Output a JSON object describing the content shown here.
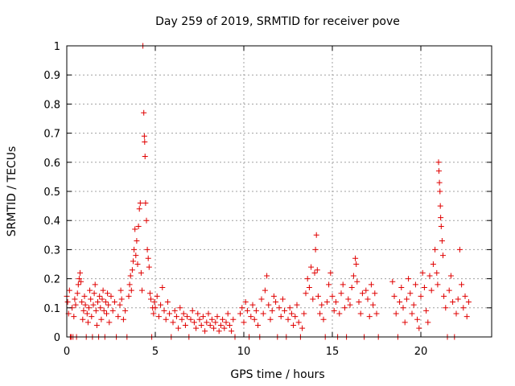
{
  "chart_data": {
    "type": "scatter",
    "title": "Day 259 of 2019, SRMTID for receiver pove",
    "xlabel": "GPS time / hours",
    "ylabel": "SRMTID / TECUs",
    "xlim": [
      0,
      24
    ],
    "ylim": [
      0,
      1
    ],
    "xticks": [
      0,
      5,
      10,
      15,
      20
    ],
    "yticks": [
      0,
      0.1,
      0.2,
      0.3,
      0.4,
      0.5,
      0.6,
      0.7,
      0.8,
      0.9,
      1
    ],
    "marker": "+",
    "color": "#e00000",
    "grid": true,
    "series": [
      {
        "name": "SRMTID",
        "points": [
          [
            0.0,
            0.14
          ],
          [
            0.05,
            0.12
          ],
          [
            0.1,
            0.08
          ],
          [
            0.15,
            0.16
          ],
          [
            0.2,
            0.0
          ],
          [
            0.25,
            0.0
          ],
          [
            0.3,
            0.1
          ],
          [
            0.35,
            0.0
          ],
          [
            0.4,
            0.07
          ],
          [
            0.45,
            0.13
          ],
          [
            0.5,
            0.11
          ],
          [
            0.55,
            0.0
          ],
          [
            0.6,
            0.15
          ],
          [
            0.65,
            0.18
          ],
          [
            0.7,
            0.2
          ],
          [
            0.75,
            0.22
          ],
          [
            0.8,
            0.19
          ],
          [
            0.85,
            0.12
          ],
          [
            0.9,
            0.06
          ],
          [
            0.95,
            0.09
          ],
          [
            1.0,
            0.14
          ],
          [
            1.05,
            0.11
          ],
          [
            1.1,
            0.0
          ],
          [
            1.15,
            0.08
          ],
          [
            1.2,
            0.05
          ],
          [
            1.25,
            0.1
          ],
          [
            1.3,
            0.16
          ],
          [
            1.35,
            0.13
          ],
          [
            1.4,
            0.07
          ],
          [
            1.45,
            0.0
          ],
          [
            1.5,
            0.11
          ],
          [
            1.55,
            0.15
          ],
          [
            1.6,
            0.18
          ],
          [
            1.65,
            0.09
          ],
          [
            1.7,
            0.04
          ],
          [
            1.75,
            0.12
          ],
          [
            1.8,
            0.0
          ],
          [
            1.85,
            0.14
          ],
          [
            1.9,
            0.1
          ],
          [
            1.95,
            0.06
          ],
          [
            2.0,
            0.13
          ],
          [
            2.05,
            0.16
          ],
          [
            2.1,
            0.09
          ],
          [
            2.15,
            0.0
          ],
          [
            2.2,
            0.12
          ],
          [
            2.25,
            0.08
          ],
          [
            2.3,
            0.15
          ],
          [
            2.35,
            0.11
          ],
          [
            2.4,
            0.05
          ],
          [
            2.5,
            0.14
          ],
          [
            2.6,
            0.09
          ],
          [
            2.7,
            0.12
          ],
          [
            2.8,
            0.0
          ],
          [
            2.9,
            0.07
          ],
          [
            3.0,
            0.11
          ],
          [
            3.05,
            0.16
          ],
          [
            3.1,
            0.13
          ],
          [
            3.2,
            0.06
          ],
          [
            3.3,
            0.09
          ],
          [
            3.4,
            0.0
          ],
          [
            3.5,
            0.14
          ],
          [
            3.55,
            0.18
          ],
          [
            3.6,
            0.21
          ],
          [
            3.65,
            0.16
          ],
          [
            3.7,
            0.23
          ],
          [
            3.75,
            0.26
          ],
          [
            3.8,
            0.3
          ],
          [
            3.85,
            0.37
          ],
          [
            3.9,
            0.28
          ],
          [
            3.95,
            0.33
          ],
          [
            4.0,
            0.25
          ],
          [
            4.05,
            0.38
          ],
          [
            4.1,
            0.44
          ],
          [
            4.15,
            0.46
          ],
          [
            4.2,
            0.22
          ],
          [
            4.25,
            0.16
          ],
          [
            4.3,
            1.0
          ],
          [
            4.35,
            0.77
          ],
          [
            4.38,
            0.69
          ],
          [
            4.4,
            0.67
          ],
          [
            4.42,
            0.62
          ],
          [
            4.45,
            0.46
          ],
          [
            4.5,
            0.4
          ],
          [
            4.55,
            0.3
          ],
          [
            4.6,
            0.27
          ],
          [
            4.65,
            0.24
          ],
          [
            4.7,
            0.15
          ],
          [
            4.75,
            0.13
          ],
          [
            4.8,
            0.0
          ],
          [
            4.85,
            0.1
          ],
          [
            4.9,
            0.08
          ],
          [
            4.95,
            0.12
          ],
          [
            5.0,
            0.1
          ],
          [
            5.1,
            0.14
          ],
          [
            5.2,
            0.07
          ],
          [
            5.3,
            0.11
          ],
          [
            5.4,
            0.17
          ],
          [
            5.5,
            0.09
          ],
          [
            5.6,
            0.06
          ],
          [
            5.7,
            0.12
          ],
          [
            5.8,
            0.08
          ],
          [
            5.9,
            0.0
          ],
          [
            6.0,
            0.05
          ],
          [
            6.1,
            0.09
          ],
          [
            6.2,
            0.07
          ],
          [
            6.3,
            0.03
          ],
          [
            6.4,
            0.1
          ],
          [
            6.5,
            0.06
          ],
          [
            6.6,
            0.08
          ],
          [
            6.7,
            0.04
          ],
          [
            6.8,
            0.07
          ],
          [
            6.9,
            0.0
          ],
          [
            7.0,
            0.06
          ],
          [
            7.1,
            0.09
          ],
          [
            7.2,
            0.05
          ],
          [
            7.3,
            0.03
          ],
          [
            7.4,
            0.08
          ],
          [
            7.5,
            0.06
          ],
          [
            7.6,
            0.04
          ],
          [
            7.7,
            0.07
          ],
          [
            7.8,
            0.02
          ],
          [
            7.9,
            0.05
          ],
          [
            8.0,
            0.08
          ],
          [
            8.1,
            0.04
          ],
          [
            8.2,
            0.06
          ],
          [
            8.3,
            0.03
          ],
          [
            8.4,
            0.05
          ],
          [
            8.5,
            0.07
          ],
          [
            8.6,
            0.02
          ],
          [
            8.7,
            0.04
          ],
          [
            8.8,
            0.06
          ],
          [
            8.9,
            0.03
          ],
          [
            9.0,
            0.05
          ],
          [
            9.1,
            0.08
          ],
          [
            9.2,
            0.04
          ],
          [
            9.3,
            0.02
          ],
          [
            9.4,
            0.06
          ],
          [
            9.5,
            0.0
          ],
          [
            9.8,
            0.08
          ],
          [
            9.9,
            0.1
          ],
          [
            10.0,
            0.05
          ],
          [
            10.1,
            0.12
          ],
          [
            10.2,
            0.09
          ],
          [
            10.3,
            0.0
          ],
          [
            10.4,
            0.07
          ],
          [
            10.5,
            0.11
          ],
          [
            10.6,
            0.06
          ],
          [
            10.7,
            0.09
          ],
          [
            10.8,
            0.04
          ],
          [
            10.9,
            0.0
          ],
          [
            11.0,
            0.13
          ],
          [
            11.1,
            0.08
          ],
          [
            11.2,
            0.16
          ],
          [
            11.3,
            0.21
          ],
          [
            11.4,
            0.11
          ],
          [
            11.5,
            0.06
          ],
          [
            11.6,
            0.09
          ],
          [
            11.7,
            0.14
          ],
          [
            11.8,
            0.12
          ],
          [
            11.9,
            0.0
          ],
          [
            12.0,
            0.1
          ],
          [
            12.1,
            0.07
          ],
          [
            12.2,
            0.13
          ],
          [
            12.3,
            0.09
          ],
          [
            12.4,
            0.0
          ],
          [
            12.5,
            0.06
          ],
          [
            12.6,
            0.1
          ],
          [
            12.7,
            0.08
          ],
          [
            12.8,
            0.04
          ],
          [
            12.9,
            0.07
          ],
          [
            13.0,
            0.11
          ],
          [
            13.1,
            0.05
          ],
          [
            13.2,
            0.0
          ],
          [
            13.3,
            0.03
          ],
          [
            13.4,
            0.08
          ],
          [
            13.5,
            0.15
          ],
          [
            13.6,
            0.2
          ],
          [
            13.7,
            0.17
          ],
          [
            13.8,
            0.24
          ],
          [
            13.9,
            0.13
          ],
          [
            14.0,
            0.22
          ],
          [
            14.05,
            0.3
          ],
          [
            14.1,
            0.35
          ],
          [
            14.15,
            0.23
          ],
          [
            14.2,
            0.14
          ],
          [
            14.3,
            0.08
          ],
          [
            14.4,
            0.11
          ],
          [
            14.5,
            0.06
          ],
          [
            14.6,
            0.0
          ],
          [
            14.7,
            0.12
          ],
          [
            14.8,
            0.18
          ],
          [
            14.9,
            0.22
          ],
          [
            15.0,
            0.14
          ],
          [
            15.1,
            0.09
          ],
          [
            15.2,
            0.12
          ],
          [
            15.3,
            0.0
          ],
          [
            15.4,
            0.08
          ],
          [
            15.5,
            0.15
          ],
          [
            15.6,
            0.18
          ],
          [
            15.7,
            0.1
          ],
          [
            15.8,
            0.0
          ],
          [
            15.9,
            0.13
          ],
          [
            16.0,
            0.11
          ],
          [
            16.1,
            0.17
          ],
          [
            16.2,
            0.21
          ],
          [
            16.3,
            0.27
          ],
          [
            16.35,
            0.25
          ],
          [
            16.4,
            0.19
          ],
          [
            16.5,
            0.12
          ],
          [
            16.6,
            0.08
          ],
          [
            16.7,
            0.15
          ],
          [
            16.8,
            0.0
          ],
          [
            16.9,
            0.16
          ],
          [
            17.0,
            0.13
          ],
          [
            17.1,
            0.07
          ],
          [
            17.2,
            0.18
          ],
          [
            17.3,
            0.11
          ],
          [
            17.4,
            0.15
          ],
          [
            17.5,
            0.08
          ],
          [
            17.6,
            0.0
          ],
          [
            18.4,
            0.19
          ],
          [
            18.5,
            0.14
          ],
          [
            18.6,
            0.08
          ],
          [
            18.7,
            0.0
          ],
          [
            18.8,
            0.12
          ],
          [
            18.9,
            0.17
          ],
          [
            19.0,
            0.1
          ],
          [
            19.1,
            0.05
          ],
          [
            19.2,
            0.13
          ],
          [
            19.3,
            0.2
          ],
          [
            19.4,
            0.15
          ],
          [
            19.5,
            0.08
          ],
          [
            19.6,
            0.11
          ],
          [
            19.7,
            0.18
          ],
          [
            19.8,
            0.06
          ],
          [
            19.9,
            0.03
          ],
          [
            20.0,
            0.14
          ],
          [
            20.1,
            0.22
          ],
          [
            20.2,
            0.17
          ],
          [
            20.3,
            0.09
          ],
          [
            20.4,
            0.05
          ],
          [
            20.5,
            0.21
          ],
          [
            20.6,
            0.16
          ],
          [
            20.7,
            0.25
          ],
          [
            20.8,
            0.3
          ],
          [
            20.9,
            0.22
          ],
          [
            20.95,
            0.18
          ],
          [
            21.0,
            0.6
          ],
          [
            21.02,
            0.57
          ],
          [
            21.05,
            0.53
          ],
          [
            21.08,
            0.5
          ],
          [
            21.1,
            0.45
          ],
          [
            21.12,
            0.41
          ],
          [
            21.15,
            0.38
          ],
          [
            21.2,
            0.33
          ],
          [
            21.25,
            0.28
          ],
          [
            21.3,
            0.14
          ],
          [
            21.4,
            0.1
          ],
          [
            21.5,
            0.0
          ],
          [
            21.6,
            0.16
          ],
          [
            21.7,
            0.21
          ],
          [
            21.8,
            0.12
          ],
          [
            21.9,
            0.0
          ],
          [
            22.0,
            0.08
          ],
          [
            22.1,
            0.13
          ],
          [
            22.2,
            0.3
          ],
          [
            22.3,
            0.18
          ],
          [
            22.4,
            0.1
          ],
          [
            22.5,
            0.14
          ],
          [
            22.6,
            0.07
          ],
          [
            22.7,
            0.12
          ]
        ]
      }
    ]
  }
}
